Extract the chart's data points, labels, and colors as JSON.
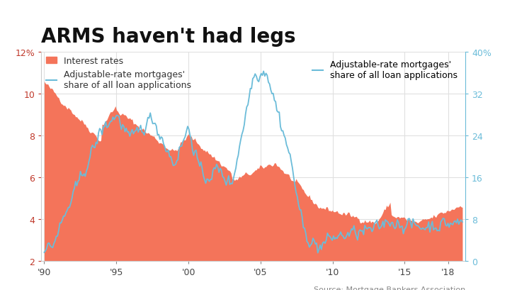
{
  "title": "ARMS haven't had legs",
  "source": "Source: Mortgage Bankers Association",
  "left_yticks": [
    2,
    4,
    6,
    8,
    10,
    12
  ],
  "left_ytick_labels": [
    "2",
    "4",
    "6",
    "8",
    "10",
    "12%"
  ],
  "right_yticks": [
    0,
    8,
    16,
    24,
    32,
    40
  ],
  "right_ytick_labels": [
    "0",
    "8",
    "16",
    "24",
    "32",
    "40%"
  ],
  "left_ylim": [
    2,
    12
  ],
  "right_ylim": [
    0,
    40
  ],
  "xtick_positions": [
    1990,
    1995,
    2000,
    2005,
    2010,
    2015,
    2018
  ],
  "xtick_labels": [
    "'90",
    "'95",
    "'00",
    "'05",
    "'10",
    "'15",
    "'18"
  ],
  "interest_color": "#F4745A",
  "arm_color": "#6BBCD9",
  "background_color": "#ffffff",
  "grid_color": "#e0e0e0",
  "title_fontsize": 20,
  "legend_fontsize": 9,
  "tick_fontsize": 9,
  "source_fontsize": 8
}
